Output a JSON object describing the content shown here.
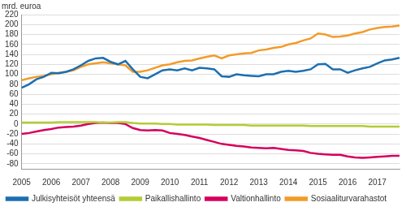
{
  "chart_data": {
    "type": "line",
    "ylabel": "mrd. euroa",
    "categories": [
      "2005",
      null,
      null,
      null,
      "2006",
      null,
      null,
      null,
      "2007",
      null,
      null,
      null,
      "2008",
      null,
      null,
      null,
      "2009",
      null,
      null,
      null,
      "2010",
      null,
      null,
      null,
      "2011",
      null,
      null,
      null,
      "2012",
      null,
      null,
      null,
      "2013",
      null,
      null,
      null,
      "2014",
      null,
      null,
      null,
      "2015",
      null,
      null,
      null,
      "2016",
      null,
      null,
      null,
      "2017",
      null,
      null,
      null
    ],
    "series": [
      {
        "name": "Julkisyhteisöt yhteensä",
        "color": "#1c6fb0",
        "values": [
          73,
          80,
          90,
          95,
          103,
          102,
          105,
          110,
          118,
          127,
          132,
          133,
          125,
          120,
          127,
          110,
          95,
          92,
          100,
          108,
          110,
          108,
          112,
          108,
          113,
          112,
          110,
          96,
          95,
          100,
          98,
          97,
          96,
          100,
          100,
          105,
          107,
          105,
          107,
          110,
          120,
          121,
          110,
          110,
          103,
          108,
          112,
          115,
          122,
          128,
          130,
          133
        ]
      },
      {
        "name": "Paikallishallinto",
        "color": "#b5cc35",
        "values": [
          3,
          3,
          3,
          3,
          3,
          4,
          4,
          4,
          4,
          4,
          4,
          3,
          3,
          4,
          4,
          2,
          1,
          1,
          1,
          0,
          0,
          -1,
          -1,
          -1,
          -1,
          -1,
          -2,
          -2,
          -2,
          -2,
          -2,
          -3,
          -3,
          -3,
          -3,
          -3,
          -3,
          -3,
          -3,
          -4,
          -4,
          -4,
          -4,
          -4,
          -4,
          -4,
          -4,
          -5,
          -5,
          -5,
          -5,
          -5
        ]
      },
      {
        "name": "Valtionhallinto",
        "color": "#d6005d",
        "values": [
          -20,
          -18,
          -15,
          -12,
          -10,
          -7,
          -6,
          -5,
          -3,
          0,
          2,
          3,
          2,
          2,
          0,
          -8,
          -12,
          -13,
          -12,
          -13,
          -18,
          -20,
          -22,
          -25,
          -28,
          -32,
          -36,
          -40,
          -42,
          -44,
          -45,
          -47,
          -48,
          -49,
          -48,
          -50,
          -52,
          -53,
          -54,
          -58,
          -60,
          -61,
          -62,
          -62,
          -65,
          -67,
          -68,
          -67,
          -66,
          -65,
          -64,
          -64
        ]
      },
      {
        "name": "Sosiaaliturvarahastot",
        "color": "#f39b2a",
        "values": [
          88,
          92,
          95,
          97,
          100,
          103,
          105,
          108,
          115,
          120,
          122,
          124,
          122,
          120,
          118,
          105,
          105,
          108,
          113,
          118,
          120,
          124,
          127,
          128,
          132,
          135,
          138,
          132,
          138,
          140,
          142,
          143,
          148,
          150,
          153,
          155,
          160,
          163,
          168,
          172,
          182,
          180,
          175,
          176,
          178,
          182,
          185,
          190,
          193,
          195,
          196,
          198
        ]
      }
    ],
    "ylim": [
      -90,
      220
    ],
    "yticks": [
      -80,
      -60,
      -40,
      -20,
      0,
      20,
      40,
      60,
      80,
      100,
      120,
      140,
      160,
      180,
      200,
      220
    ],
    "grid": true,
    "legend": "bottom"
  }
}
